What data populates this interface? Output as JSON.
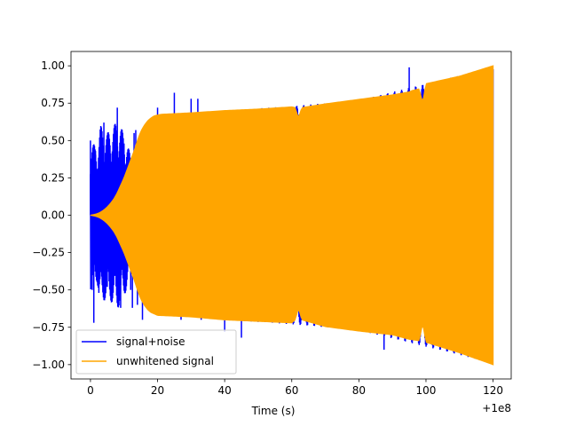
{
  "chart_data": {
    "type": "line",
    "title": "",
    "xlabel": "Time (s)",
    "ylabel": "",
    "x_offset_label": "+1e8",
    "xlim": [
      -5.8,
      125.4
    ],
    "ylim": [
      -1.096,
      1.096
    ],
    "x_ticks": [
      0,
      20,
      40,
      60,
      80,
      100,
      120
    ],
    "x_tick_labels": [
      "0",
      "20",
      "40",
      "60",
      "80",
      "100",
      "120"
    ],
    "y_ticks": [
      1.0,
      0.75,
      0.5,
      0.25,
      0.0,
      -0.25,
      -0.5,
      -0.75,
      -1.0
    ],
    "y_tick_labels": [
      "1.00",
      "0.75",
      "0.50",
      "0.25",
      "0.00",
      "−0.25",
      "−0.50",
      "−0.75",
      "−1.00"
    ],
    "grid": false,
    "legend_position": "lower-left",
    "series": [
      {
        "name": "signal+noise",
        "color": "#0000ff",
        "x_range": [
          0,
          120
        ],
        "envelope_upper": [
          [
            0,
            0.5
          ],
          [
            2,
            0.45
          ],
          [
            3,
            0.6
          ],
          [
            5,
            0.55
          ],
          [
            8,
            0.63
          ],
          [
            10,
            0.55
          ],
          [
            12,
            0.4
          ],
          [
            14,
            0.38
          ],
          [
            16,
            0.45
          ],
          [
            18,
            0.6
          ],
          [
            20,
            0.67
          ],
          [
            30,
            0.68
          ],
          [
            40,
            0.7
          ],
          [
            60,
            0.73
          ],
          [
            80,
            0.77
          ],
          [
            100,
            0.88
          ],
          [
            120,
            0.99
          ]
        ],
        "spikes": [
          [
            0,
            0.5
          ],
          [
            0.5,
            -0.5
          ],
          [
            1,
            -0.72
          ],
          [
            1.5,
            0.43
          ],
          [
            2.5,
            -0.52
          ],
          [
            3,
            0.51
          ],
          [
            3.5,
            -0.45
          ],
          [
            4,
            0.62
          ],
          [
            4.5,
            -0.52
          ],
          [
            5,
            -0.48
          ],
          [
            6,
            0.25
          ],
          [
            6.5,
            -0.55
          ],
          [
            7,
            0.55
          ],
          [
            7.5,
            0.5
          ],
          [
            8,
            0.72
          ],
          [
            8.5,
            -0.48
          ],
          [
            9,
            -0.62
          ],
          [
            10,
            0.48
          ],
          [
            11,
            0.35
          ],
          [
            12,
            -0.5
          ],
          [
            12.5,
            -0.62
          ],
          [
            13,
            0.55
          ],
          [
            13.5,
            0.57
          ],
          [
            14,
            -0.6
          ],
          [
            15,
            0.55
          ],
          [
            15.5,
            -0.7
          ],
          [
            16,
            0.42
          ],
          [
            20,
            0.72
          ],
          [
            22,
            0.65
          ],
          [
            25,
            0.82
          ],
          [
            27,
            -0.7
          ],
          [
            30,
            0.78
          ],
          [
            32,
            0.78
          ],
          [
            33,
            -0.7
          ],
          [
            40,
            -0.78
          ],
          [
            45,
            -0.82
          ],
          [
            60,
            -0.7
          ],
          [
            75,
            -0.72
          ],
          [
            87.5,
            -0.9
          ],
          [
            95,
            0.99
          ],
          [
            100,
            -0.82
          ]
        ]
      },
      {
        "name": "unwhitened signal",
        "color": "#ffa500",
        "x_range": [
          0,
          120
        ],
        "envelope_upper": [
          [
            0,
            0.0
          ],
          [
            1,
            0.004
          ],
          [
            2,
            0.01
          ],
          [
            3,
            0.02
          ],
          [
            4,
            0.035
          ],
          [
            5,
            0.055
          ],
          [
            6,
            0.08
          ],
          [
            7,
            0.11
          ],
          [
            8,
            0.15
          ],
          [
            9,
            0.2
          ],
          [
            10,
            0.25
          ],
          [
            11,
            0.31
          ],
          [
            12,
            0.37
          ],
          [
            13,
            0.43
          ],
          [
            14,
            0.5
          ],
          [
            15,
            0.56
          ],
          [
            16,
            0.6
          ],
          [
            17,
            0.63
          ],
          [
            18,
            0.65
          ],
          [
            19,
            0.665
          ],
          [
            20,
            0.67
          ],
          [
            21,
            0.675
          ],
          [
            30,
            0.685
          ],
          [
            40,
            0.7
          ],
          [
            50,
            0.71
          ],
          [
            60,
            0.725
          ],
          [
            61,
            0.72
          ],
          [
            62,
            0.65
          ],
          [
            63,
            0.72
          ],
          [
            70,
            0.745
          ],
          [
            80,
            0.775
          ],
          [
            90,
            0.805
          ],
          [
            95,
            0.825
          ],
          [
            96,
            0.835
          ],
          [
            97,
            0.84
          ],
          [
            98,
            0.845
          ],
          [
            99,
            0.75
          ],
          [
            100,
            0.88
          ],
          [
            110,
            0.93
          ],
          [
            120,
            1.0
          ]
        ],
        "envelope_lower": [
          [
            0,
            0.0
          ],
          [
            1,
            -0.004
          ],
          [
            2,
            -0.01
          ],
          [
            3,
            -0.02
          ],
          [
            4,
            -0.035
          ],
          [
            5,
            -0.055
          ],
          [
            6,
            -0.08
          ],
          [
            7,
            -0.11
          ],
          [
            8,
            -0.15
          ],
          [
            9,
            -0.2
          ],
          [
            10,
            -0.25
          ],
          [
            11,
            -0.31
          ],
          [
            12,
            -0.37
          ],
          [
            13,
            -0.43
          ],
          [
            14,
            -0.5
          ],
          [
            15,
            -0.56
          ],
          [
            16,
            -0.6
          ],
          [
            17,
            -0.63
          ],
          [
            18,
            -0.65
          ],
          [
            19,
            -0.66
          ],
          [
            20,
            -0.67
          ],
          [
            30,
            -0.68
          ],
          [
            40,
            -0.7
          ],
          [
            50,
            -0.71
          ],
          [
            60,
            -0.72
          ],
          [
            61,
            -0.7
          ],
          [
            62,
            -0.62
          ],
          [
            63,
            -0.7
          ],
          [
            70,
            -0.745
          ],
          [
            80,
            -0.775
          ],
          [
            90,
            -0.8
          ],
          [
            95,
            -0.83
          ],
          [
            98,
            -0.84
          ],
          [
            99,
            -0.72
          ],
          [
            100,
            -0.85
          ],
          [
            110,
            -0.92
          ],
          [
            120,
            -1.0
          ]
        ]
      }
    ]
  }
}
